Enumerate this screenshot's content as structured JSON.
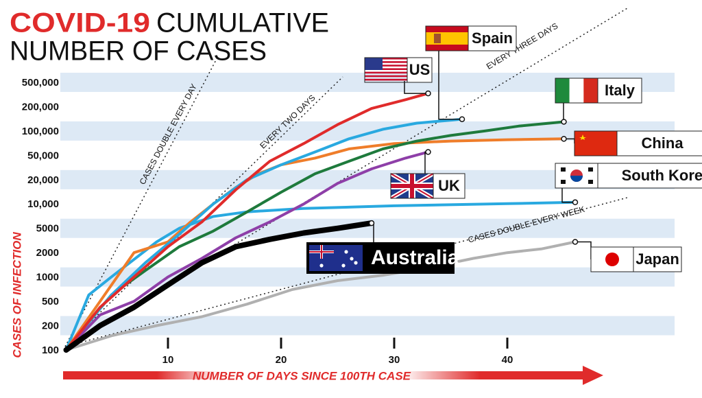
{
  "chart_data": {
    "type": "line",
    "title_highlight": "COVID-19",
    "title_line1": "CUMULATIVE",
    "title_line2": "NUMBER OF CASES",
    "y_label": "CASES OF INFECTION",
    "x_label": "NUMBER OF DAYS SINCE 100TH CASE",
    "log_scale": true,
    "grid": true,
    "xlim": [
      0,
      55
    ],
    "xticks": [
      10,
      20,
      30,
      40
    ],
    "ylim": [
      100,
      500000
    ],
    "yticks": [
      100,
      200,
      500,
      1000,
      2000,
      5000,
      {
        "value": 10000,
        "label": "10,000"
      },
      {
        "value": 20000,
        "label": "20,000"
      },
      {
        "value": 50000,
        "label": "50,000"
      },
      {
        "value": 100000,
        "label": "100,000"
      },
      {
        "value": 200000,
        "label": "200,000"
      },
      {
        "value": 500000,
        "label": "500,000"
      }
    ],
    "annotations": [
      "CASES DOUBLE EVERY DAY",
      "EVERY TWO DAYS",
      "EVERY THREE DAYS",
      "CASES DOUBLE EVERY WEEK"
    ],
    "series": [
      {
        "name": "US",
        "color": "#e02b2b",
        "x": [
          1,
          4,
          7,
          10,
          13,
          16,
          19,
          22,
          25,
          28,
          31,
          33
        ],
        "values": [
          100,
          400,
          1000,
          2500,
          6000,
          15000,
          40000,
          70000,
          120000,
          190000,
          260000,
          330000
        ]
      },
      {
        "name": "Spain",
        "color": "#29a9e0",
        "x": [
          1,
          5,
          8,
          11,
          14,
          17,
          20,
          23,
          26,
          29,
          32,
          36
        ],
        "values": [
          100,
          600,
          1500,
          4000,
          10000,
          20000,
          35000,
          55000,
          80000,
          105000,
          125000,
          140000
        ]
      },
      {
        "name": "Italy",
        "color": "#1e7a3c",
        "x": [
          1,
          5,
          8,
          11,
          14,
          17,
          20,
          23,
          26,
          29,
          32,
          35,
          38,
          41,
          45
        ],
        "values": [
          100,
          600,
          1200,
          2500,
          4500,
          8000,
          14000,
          25000,
          40000,
          60000,
          75000,
          88000,
          100000,
          115000,
          130000
        ]
      },
      {
        "name": "China",
        "color": "#ef7d2a",
        "x": [
          1,
          4,
          7,
          10,
          12,
          14,
          16,
          18,
          20,
          23,
          26,
          30,
          35,
          40,
          45
        ],
        "values": [
          100,
          500,
          2000,
          3000,
          6000,
          10000,
          16000,
          25000,
          35000,
          45000,
          60000,
          70000,
          75000,
          78000,
          80000
        ]
      },
      {
        "name": "UK",
        "color": "#8e3fa8",
        "x": [
          1,
          4,
          7,
          10,
          13,
          16,
          19,
          22,
          25,
          28,
          31,
          33
        ],
        "values": [
          100,
          300,
          500,
          1000,
          1700,
          3500,
          6000,
          10000,
          18000,
          30000,
          45000,
          55000
        ]
      },
      {
        "name": "South Korea",
        "color": "#29a9e0",
        "x": [
          1,
          3,
          5,
          9,
          11,
          14,
          17,
          22,
          30,
          40,
          46
        ],
        "values": [
          100,
          600,
          1000,
          3000,
          5000,
          7000,
          8000,
          8800,
          9500,
          10100,
          10500
        ]
      },
      {
        "name": "Australia",
        "color": "#000000",
        "x": [
          1,
          4,
          7,
          10,
          13,
          16,
          19,
          22,
          25,
          28
        ],
        "values": [
          100,
          200,
          400,
          800,
          1500,
          2500,
          3300,
          4200,
          5000,
          5800
        ]
      },
      {
        "name": "Japan",
        "color": "#b0b0b0",
        "x": [
          1,
          5,
          9,
          13,
          17,
          21,
          25,
          29,
          33,
          37,
          40,
          43,
          46
        ],
        "values": [
          100,
          150,
          200,
          280,
          450,
          700,
          900,
          1050,
          1300,
          1700,
          2000,
          2300,
          3000
        ]
      }
    ]
  }
}
